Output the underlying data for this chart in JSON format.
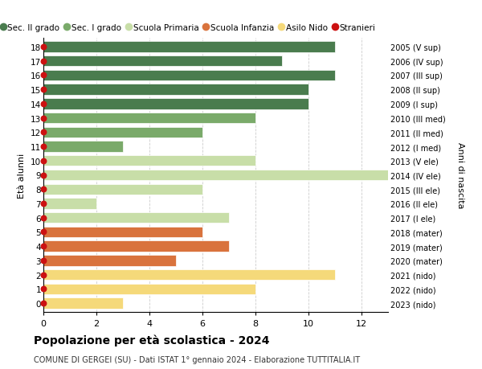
{
  "ages": [
    18,
    17,
    16,
    15,
    14,
    13,
    12,
    11,
    10,
    9,
    8,
    7,
    6,
    5,
    4,
    3,
    2,
    1,
    0
  ],
  "right_labels": [
    "2005 (V sup)",
    "2006 (IV sup)",
    "2007 (III sup)",
    "2008 (II sup)",
    "2009 (I sup)",
    "2010 (III med)",
    "2011 (II med)",
    "2012 (I med)",
    "2013 (V ele)",
    "2014 (IV ele)",
    "2015 (III ele)",
    "2016 (II ele)",
    "2017 (I ele)",
    "2018 (mater)",
    "2019 (mater)",
    "2020 (mater)",
    "2021 (nido)",
    "2022 (nido)",
    "2023 (nido)"
  ],
  "bar_values": [
    11,
    9,
    11,
    10,
    10,
    8,
    6,
    3,
    8,
    13,
    6,
    2,
    7,
    6,
    7,
    5,
    11,
    8,
    3
  ],
  "bar_colors": [
    "#4a7c4e",
    "#4a7c4e",
    "#4a7c4e",
    "#4a7c4e",
    "#4a7c4e",
    "#7aaa6a",
    "#7aaa6a",
    "#7aaa6a",
    "#c8dea8",
    "#c8dea8",
    "#c8dea8",
    "#c8dea8",
    "#c8dea8",
    "#d9733d",
    "#d9733d",
    "#d9733d",
    "#f5d97a",
    "#f5d97a",
    "#f5d97a"
  ],
  "legend_labels": [
    "Sec. II grado",
    "Sec. I grado",
    "Scuola Primaria",
    "Scuola Infanzia",
    "Asilo Nido",
    "Stranieri"
  ],
  "legend_colors": [
    "#4a7c4e",
    "#7aaa6a",
    "#c8dea8",
    "#d9733d",
    "#f5d97a",
    "#cc1111"
  ],
  "title": "Popolazione per età scolastica - 2024",
  "subtitle": "COMUNE DI GERGEI (SU) - Dati ISTAT 1° gennaio 2024 - Elaborazione TUTTITALIA.IT",
  "ylabel_left": "Età alunni",
  "ylabel_right": "Anni di nascita",
  "xlim": [
    0,
    13
  ],
  "xticks": [
    0,
    2,
    4,
    6,
    8,
    10,
    12
  ],
  "background_color": "#ffffff",
  "grid_color": "#cccccc",
  "bar_height": 0.75,
  "dot_color": "#cc1111",
  "dot_size": 22
}
